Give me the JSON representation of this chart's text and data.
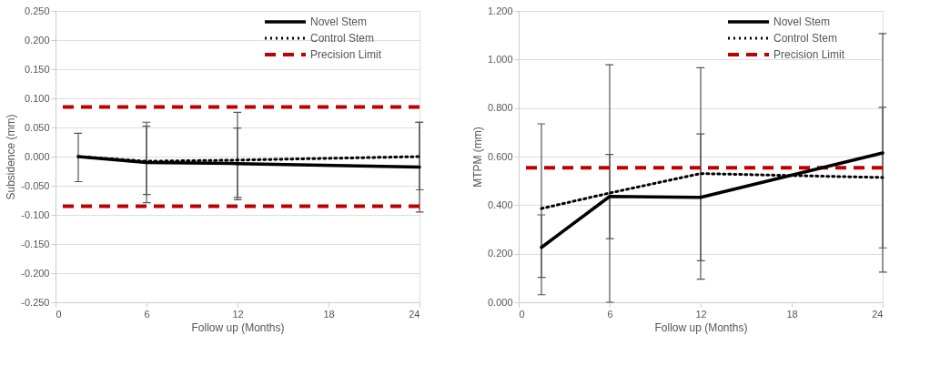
{
  "chart_data": [
    {
      "type": "line",
      "xlabel": "Follow up (Months)",
      "ylabel": "Subsidence (mm)",
      "x": [
        1.5,
        6,
        12,
        24
      ],
      "series": [
        {
          "name": "Novel Stem",
          "color": "#000000",
          "line_style": "solid",
          "values": [
            0.0,
            -0.01,
            -0.012,
            -0.018
          ],
          "errors": [
            [
              -0.043,
              0.04
            ],
            [
              -0.079,
              0.059
            ],
            [
              -0.074,
              0.076
            ],
            [
              -0.095,
              0.059
            ]
          ]
        },
        {
          "name": "Control Stem",
          "color": "#000000",
          "line_style": "dotted",
          "values": [
            0.0,
            -0.008,
            -0.006,
            0.0
          ],
          "errors": [
            null,
            [
              -0.065,
              0.052
            ],
            [
              -0.07,
              0.049
            ],
            [
              -0.057,
              0.059
            ]
          ]
        }
      ],
      "ref_lines": [
        {
          "axis": "y",
          "value": 0.085,
          "label": "Precision Limit",
          "color": "#c00000",
          "line_style": "dashed"
        },
        {
          "axis": "y",
          "value": -0.085,
          "color": "#c00000",
          "line_style": "dashed"
        }
      ],
      "xlim": [
        0,
        24
      ],
      "xticks": [
        0,
        6,
        12,
        18,
        24
      ],
      "ylim": [
        -0.25,
        0.25
      ],
      "yticks": [
        {
          "value": -0.25,
          "label": "-0.250"
        },
        {
          "value": -0.2,
          "label": "-0.200"
        },
        {
          "value": -0.15,
          "label": "-0.150"
        },
        {
          "value": -0.1,
          "label": "-0.100"
        },
        {
          "value": -0.05,
          "label": "-0.050"
        },
        {
          "value": 0,
          "label": "0.000"
        },
        {
          "value": 0.05,
          "label": "0.050"
        },
        {
          "value": 0.1,
          "label": "0.100"
        },
        {
          "value": 0.15,
          "label": "0.150"
        },
        {
          "value": 0.2,
          "label": "0.200"
        },
        {
          "value": 0.25,
          "label": "0.250"
        }
      ],
      "grid": "y",
      "legend": "top right",
      "marker": "none"
    },
    {
      "type": "line",
      "xlabel": "Follow up (Months)",
      "ylabel": "MTPM (mm)",
      "x": [
        1.5,
        6,
        12,
        24
      ],
      "series": [
        {
          "name": "Novel Stem",
          "color": "#000000",
          "line_style": "solid",
          "values": [
            0.226,
            0.436,
            0.432,
            0.615
          ],
          "errors": [
            [
              0.103,
              0.36
            ],
            [
              0.262,
              0.609
            ],
            [
              0.171,
              0.693
            ],
            [
              0.124,
              1.107
            ]
          ]
        },
        {
          "name": "Control Stem",
          "color": "#000000",
          "line_style": "dotted",
          "values": [
            0.386,
            0.45,
            0.53,
            0.514
          ],
          "errors": [
            [
              0.031,
              0.735
            ],
            [
              0.0,
              0.978
            ],
            [
              0.095,
              0.966
            ],
            [
              0.224,
              0.803
            ]
          ]
        }
      ],
      "ref_lines": [
        {
          "axis": "y",
          "value": 0.554,
          "label": "Precision Limit",
          "color": "#c00000",
          "line_style": "dashed"
        }
      ],
      "xlim": [
        0,
        24
      ],
      "xticks": [
        0,
        6,
        12,
        18,
        24
      ],
      "ylim": [
        0,
        1.2
      ],
      "yticks": [
        {
          "value": 0,
          "label": "0.000"
        },
        {
          "value": 0.2,
          "label": "0.200"
        },
        {
          "value": 0.4,
          "label": "0.400"
        },
        {
          "value": 0.6,
          "label": "0.600"
        },
        {
          "value": 0.8,
          "label": "0.800"
        },
        {
          "value": 1.0,
          "label": "1.000"
        },
        {
          "value": 1.2,
          "label": "1.200"
        }
      ],
      "grid": "y",
      "legend": "top right",
      "marker": "none"
    }
  ]
}
